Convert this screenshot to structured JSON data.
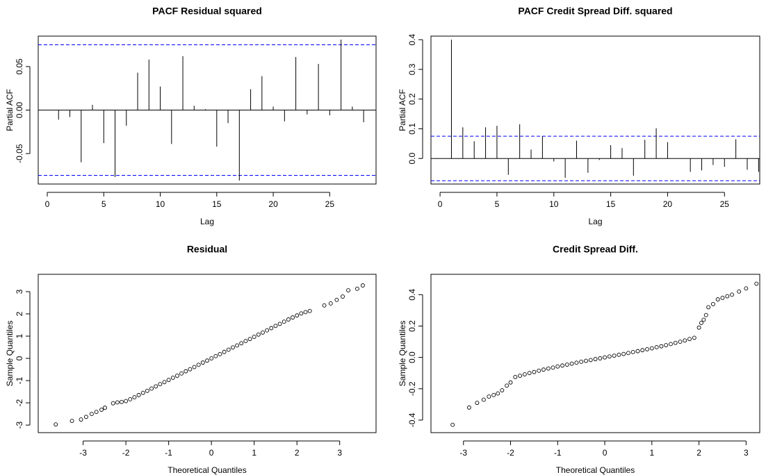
{
  "chart_data": [
    {
      "type": "bar",
      "title": "PACF Residual squared",
      "xlabel": "Lag",
      "ylabel": "Partial ACF",
      "color": "#000000",
      "x": [
        1,
        2,
        3,
        4,
        5,
        6,
        7,
        8,
        9,
        10,
        11,
        12,
        13,
        14,
        15,
        16,
        17,
        18,
        19,
        20,
        21,
        22,
        23,
        24,
        25,
        26,
        27,
        28
      ],
      "values": [
        -0.011,
        -0.008,
        -0.06,
        0.006,
        -0.038,
        -0.077,
        -0.018,
        0.043,
        0.058,
        0.027,
        -0.039,
        0.062,
        0.005,
        0.001,
        -0.042,
        -0.015,
        -0.081,
        0.024,
        0.039,
        0.004,
        -0.013,
        0.061,
        -0.005,
        0.053,
        -0.006,
        0.081,
        0.004,
        -0.014
      ],
      "hlines": [
        0.075,
        -0.075
      ],
      "hline_color": "#0000ff",
      "xlim": [
        -0.8,
        29.1
      ],
      "ylim": [
        -0.085,
        0.085
      ],
      "xticks": [
        0,
        5,
        10,
        15,
        20,
        25
      ],
      "yticks": [
        -0.05,
        {
          "value": 0,
          "label": "0.00"
        },
        0.05
      ]
    },
    {
      "type": "bar",
      "title": "PACF Credit Spread Diff. squared",
      "xlabel": "Lag",
      "ylabel": "Partial ACF",
      "color": "#000000",
      "x": [
        1,
        2,
        3,
        4,
        5,
        6,
        7,
        8,
        9,
        10,
        11,
        12,
        13,
        14,
        15,
        16,
        17,
        18,
        19,
        20,
        21,
        22,
        23,
        24,
        25,
        26,
        27,
        28
      ],
      "values": [
        0.4,
        0.105,
        0.058,
        0.105,
        0.11,
        -0.055,
        0.115,
        0.03,
        0.075,
        -0.01,
        -0.065,
        0.06,
        -0.048,
        -0.005,
        0.045,
        0.035,
        -0.058,
        0.063,
        0.102,
        0.055,
        0,
        -0.045,
        -0.04,
        -0.022,
        -0.028,
        0.065,
        -0.038,
        -0.045
      ],
      "hlines": [
        0.075,
        -0.075
      ],
      "hline_color": "#0000ff",
      "xlim": [
        -0.8,
        28.1
      ],
      "ylim": [
        -0.086,
        0.412
      ],
      "xticks": [
        0,
        5,
        10,
        15,
        20,
        25
      ],
      "yticks": [
        {
          "value": 0,
          "label": "0.0"
        },
        0.1,
        0.2,
        0.3,
        0.4
      ]
    },
    {
      "type": "scatter",
      "title": "Residual",
      "xlabel": "Theoretical Quantiles",
      "ylabel": "Sample Quantiles",
      "color": "#000000",
      "x": [
        -3.64,
        -3.26,
        -3.05,
        -2.93,
        -2.8,
        -2.69,
        -2.57,
        -2.49,
        -2.3,
        -2.2,
        -2.1,
        -2.0,
        -1.9,
        -1.8,
        -1.7,
        -1.6,
        -1.5,
        -1.4,
        -1.3,
        -1.2,
        -1.1,
        -1.0,
        -0.9,
        -0.8,
        -0.7,
        -0.6,
        -0.5,
        -0.4,
        -0.3,
        -0.2,
        -0.1,
        0,
        0.1,
        0.2,
        0.3,
        0.4,
        0.5,
        0.6,
        0.7,
        0.8,
        0.9,
        1.0,
        1.1,
        1.2,
        1.3,
        1.4,
        1.5,
        1.6,
        1.7,
        1.8,
        1.9,
        2.0,
        2.1,
        2.2,
        2.3,
        2.64,
        2.79,
        2.93,
        3.07,
        3.2,
        3.41,
        3.54
      ],
      "values": [
        -2.97,
        -2.81,
        -2.75,
        -2.63,
        -2.5,
        -2.41,
        -2.31,
        -2.22,
        -2.02,
        -1.98,
        -1.96,
        -1.92,
        -1.84,
        -1.75,
        -1.65,
        -1.55,
        -1.46,
        -1.36,
        -1.26,
        -1.16,
        -1.07,
        -0.97,
        -0.87,
        -0.78,
        -0.68,
        -0.58,
        -0.49,
        -0.39,
        -0.29,
        -0.19,
        -0.1,
        0,
        0.1,
        0.19,
        0.29,
        0.39,
        0.49,
        0.58,
        0.68,
        0.78,
        0.87,
        0.97,
        1.07,
        1.16,
        1.26,
        1.36,
        1.46,
        1.55,
        1.65,
        1.75,
        1.84,
        1.93,
        2.02,
        2.08,
        2.13,
        2.38,
        2.47,
        2.63,
        2.78,
        3.06,
        3.13,
        3.28
      ],
      "xlim": [
        -4.05,
        3.85
      ],
      "ylim": [
        -3.34,
        3.78
      ],
      "xticks": [
        -3,
        -2,
        -1,
        0,
        1,
        2,
        3
      ],
      "yticks": [
        -3,
        -2,
        -1,
        0,
        1,
        2,
        3
      ]
    },
    {
      "type": "scatter",
      "title": "Credit Spread Diff.",
      "xlabel": "Theoretical Quantiles",
      "ylabel": "Sample Quantiles",
      "color": "#000000",
      "x": [
        -3.23,
        -2.88,
        -2.71,
        -2.57,
        -2.46,
        -2.36,
        -2.27,
        -2.18,
        -2.08,
        -2.0,
        -1.9,
        -1.8,
        -1.7,
        -1.6,
        -1.5,
        -1.4,
        -1.3,
        -1.2,
        -1.1,
        -1.0,
        -0.9,
        -0.8,
        -0.7,
        -0.6,
        -0.5,
        -0.4,
        -0.3,
        -0.2,
        -0.1,
        0,
        0.1,
        0.2,
        0.3,
        0.4,
        0.5,
        0.6,
        0.7,
        0.8,
        0.9,
        1.0,
        1.1,
        1.2,
        1.3,
        1.4,
        1.5,
        1.6,
        1.7,
        1.8,
        1.9,
        2.0,
        2.05,
        2.1,
        2.15,
        2.2,
        2.3,
        2.4,
        2.5,
        2.6,
        2.7,
        2.85,
        3.0,
        3.22
      ],
      "values": [
        -0.43,
        -0.32,
        -0.29,
        -0.27,
        -0.25,
        -0.24,
        -0.23,
        -0.21,
        -0.18,
        -0.16,
        -0.125,
        -0.117,
        -0.108,
        -0.1,
        -0.093,
        -0.085,
        -0.078,
        -0.071,
        -0.065,
        -0.058,
        -0.052,
        -0.046,
        -0.04,
        -0.034,
        -0.028,
        -0.022,
        -0.017,
        -0.011,
        -0.006,
        0,
        0.006,
        0.011,
        0.017,
        0.022,
        0.028,
        0.034,
        0.04,
        0.046,
        0.052,
        0.058,
        0.065,
        0.071,
        0.078,
        0.085,
        0.093,
        0.1,
        0.108,
        0.117,
        0.125,
        0.19,
        0.22,
        0.24,
        0.27,
        0.32,
        0.34,
        0.37,
        0.38,
        0.39,
        0.4,
        0.42,
        0.44,
        0.47
      ],
      "xlim": [
        -3.69,
        3.29
      ],
      "ylim": [
        -0.48,
        0.53
      ],
      "xticks": [
        -3,
        -2,
        -1,
        0,
        1,
        2,
        3
      ],
      "yticks": [
        -0.4,
        -0.2,
        {
          "value": 0,
          "label": "0.0"
        },
        0.2,
        0.4
      ]
    }
  ]
}
